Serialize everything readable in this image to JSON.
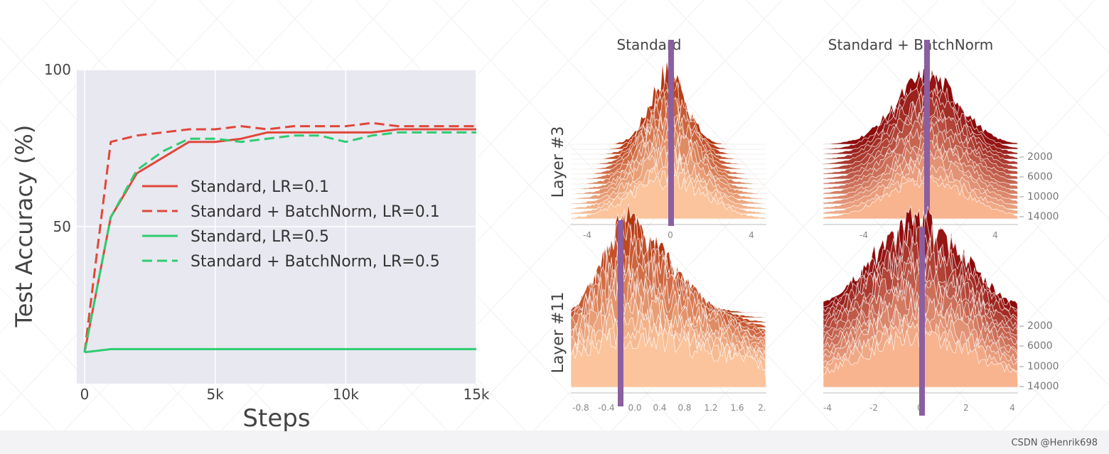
{
  "watermark": "CSDN @Henrik698",
  "colors": {
    "red": "#e0473a",
    "green": "#2ecc71",
    "plot_bg": "#e8e8f0",
    "grid": "#ffffff",
    "marker": "#8b5fa0",
    "bn_light": "#f7b48f",
    "bn_dark": "#8e0b0b",
    "std_light": "#fbc49c",
    "std_dark": "#b5350f"
  },
  "chart_data": [
    {
      "type": "line",
      "title": "",
      "xlabel": "Steps",
      "ylabel": "Test Accuracy (%)",
      "xlim": [
        -300,
        15000
      ],
      "ylim": [
        0,
        100
      ],
      "x_ticks": [
        0,
        5000,
        10000,
        15000
      ],
      "x_tick_labels": [
        "0",
        "5k",
        "10k",
        "15k"
      ],
      "y_ticks": [
        50,
        100
      ],
      "y_tick_labels": [
        "50",
        "100"
      ],
      "grid": true,
      "legend_position": "center-right",
      "series": [
        {
          "name": "Standard, LR=0.1",
          "color": "red",
          "dash": "solid",
          "x": [
            0,
            1000,
            2000,
            3000,
            4000,
            5000,
            6000,
            7000,
            8000,
            9000,
            10000,
            11000,
            12000,
            13000,
            14000,
            15000
          ],
          "y": [
            10,
            53,
            67,
            72,
            77,
            77,
            78,
            80,
            80,
            80,
            80,
            80,
            81,
            81,
            81,
            81
          ]
        },
        {
          "name": "Standard + BatchNorm, LR=0.1",
          "color": "red",
          "dash": "dashed",
          "x": [
            0,
            1000,
            2000,
            3000,
            4000,
            5000,
            6000,
            7000,
            8000,
            9000,
            10000,
            11000,
            12000,
            13000,
            14000,
            15000
          ],
          "y": [
            10,
            77,
            79,
            80,
            81,
            81,
            82,
            81,
            82,
            82,
            82,
            83,
            82,
            82,
            82,
            82
          ]
        },
        {
          "name": "Standard, LR=0.5",
          "color": "green",
          "dash": "solid",
          "x": [
            0,
            1000,
            2000,
            5000,
            10000,
            15000
          ],
          "y": [
            10,
            11,
            11,
            11,
            11,
            11
          ]
        },
        {
          "name": "Standard + BatchNorm, LR=0.5",
          "color": "green",
          "dash": "dashed",
          "x": [
            0,
            1000,
            2000,
            3000,
            4000,
            5000,
            6000,
            7000,
            8000,
            9000,
            10000,
            11000,
            12000,
            13000,
            14000,
            15000
          ],
          "y": [
            10,
            53,
            68,
            74,
            78,
            78,
            77,
            78,
            79,
            79,
            77,
            79,
            80,
            80,
            80,
            80
          ]
        }
      ]
    },
    {
      "type": "area",
      "title": "Standard",
      "row_label": "Layer #3",
      "x_tick_labels": [
        "-4",
        "0",
        "4"
      ],
      "time_axis": false,
      "marker_position": "0"
    },
    {
      "type": "area",
      "title": "Standard + BatchNorm",
      "row_label": "Layer #3",
      "x_tick_labels": [
        "-4",
        "0",
        "4"
      ],
      "time_axis": true,
      "time_tick_labels": [
        "2000",
        "6000",
        "10000",
        "14000"
      ],
      "marker_position": "0"
    },
    {
      "type": "area",
      "row_label": "Layer #11",
      "x_tick_labels": [
        "-0.8",
        "-0.4",
        "0.0",
        "0.4",
        "0.8",
        "1.2",
        "1.6",
        "2."
      ],
      "time_axis": false,
      "marker_position": "-0.2"
    },
    {
      "type": "area",
      "row_label": "Layer #11",
      "x_tick_labels": [
        "-4",
        "-2",
        "0",
        "2",
        "4"
      ],
      "time_axis": true,
      "time_tick_labels": [
        "2000",
        "6000",
        "10000",
        "14000"
      ],
      "marker_position": "-0.3"
    }
  ]
}
